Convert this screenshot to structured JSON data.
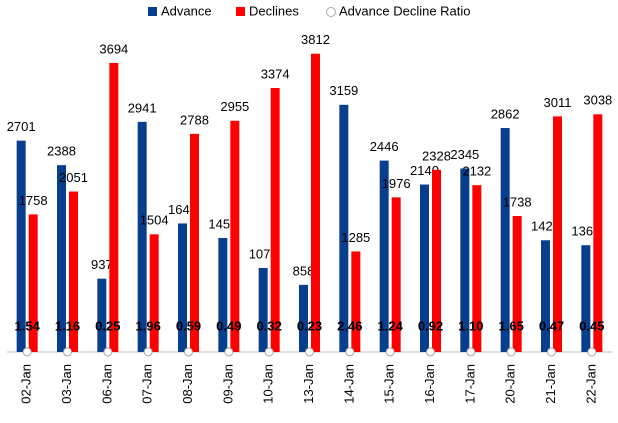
{
  "chart_data": {
    "type": "bar",
    "categories": [
      "02-Jan",
      "03-Jan",
      "06-Jan",
      "07-Jan",
      "08-Jan",
      "09-Jan",
      "10-Jan",
      "13-Jan",
      "14-Jan",
      "15-Jan",
      "16-Jan",
      "17-Jan",
      "20-Jan",
      "21-Jan",
      "22-Jan"
    ],
    "series": [
      {
        "name": "Advance",
        "color": "#073e8e",
        "values": [
          2701,
          2388,
          937,
          2941,
          1643,
          1457,
          1074,
          858,
          3159,
          2446,
          2140,
          2345,
          2862,
          1428,
          1365
        ]
      },
      {
        "name": "Declines",
        "color": "#ff0000",
        "values": [
          1758,
          2051,
          3694,
          1504,
          2788,
          2955,
          3374,
          3812,
          1285,
          1976,
          2328,
          2132,
          1738,
          3011,
          3038
        ]
      },
      {
        "name": "Advance Decline Ratio",
        "color": "#a6a6a6",
        "values": [
          1.54,
          1.16,
          0.25,
          1.96,
          0.59,
          0.49,
          0.32,
          0.23,
          2.46,
          1.24,
          0.92,
          1.1,
          1.65,
          0.47,
          0.45
        ],
        "value_labels": [
          "1.54",
          "1.16",
          "0.25",
          "1.96",
          "0.59",
          "0.49",
          "0.32",
          "0.23",
          "2.46",
          "1.24",
          "0.92",
          "1.10",
          "1.65",
          "0.47",
          "0.45"
        ]
      }
    ],
    "ylim": [
      0,
      4000
    ],
    "legend": "top"
  }
}
